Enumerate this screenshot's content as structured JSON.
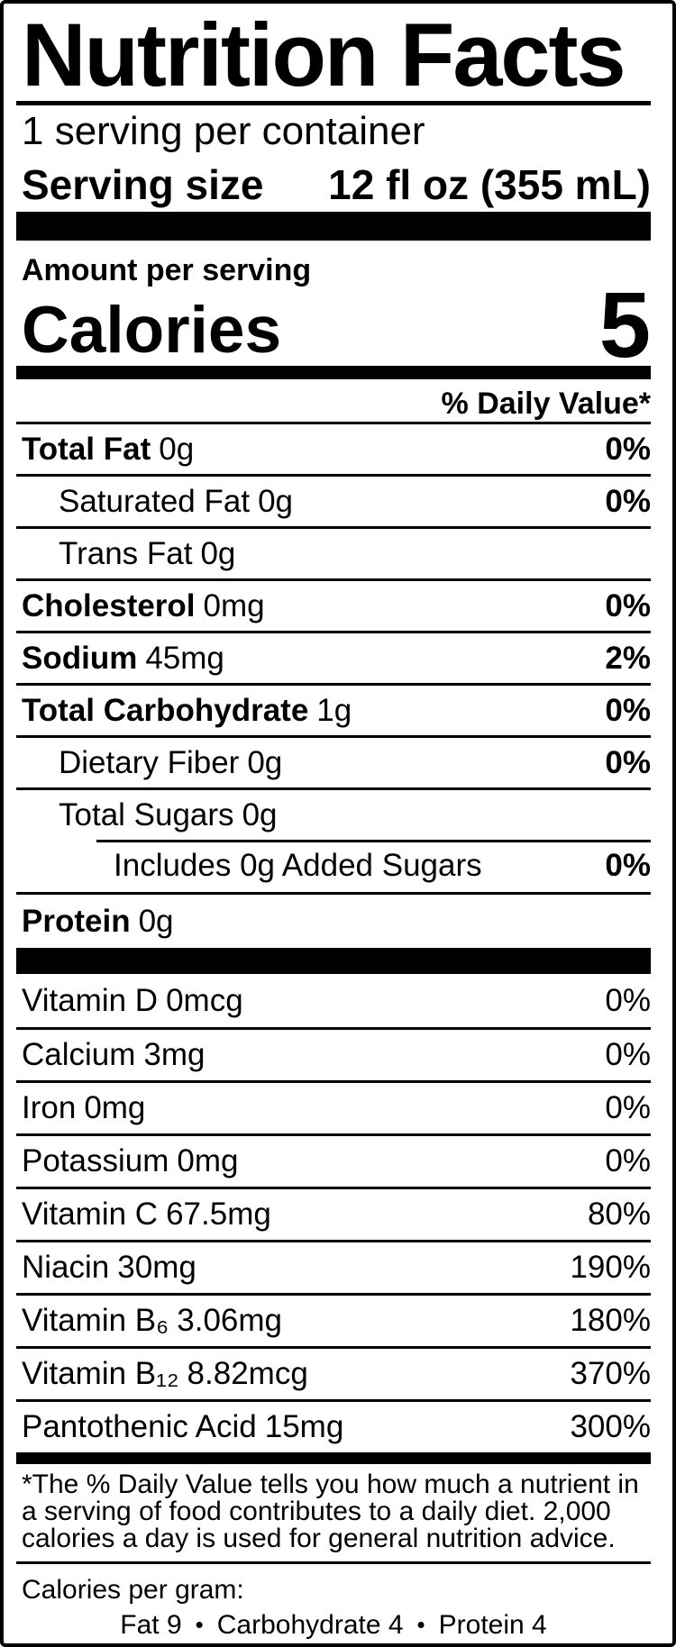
{
  "colors": {
    "ink": "#000000",
    "paper": "#ffffff"
  },
  "header": {
    "title": "Nutrition Facts",
    "servings_per_container": "1 serving per container",
    "serving_size_label": "Serving size",
    "serving_size_value": "12 fl oz (355 mL)"
  },
  "calories_section": {
    "amount_per_serving_label": "Amount per serving",
    "calories_label": "Calories",
    "calories_value": "5"
  },
  "daily_value_header": "% Daily Value*",
  "nutrients": [
    {
      "name": "Total Fat",
      "amount": "0g",
      "dv": "0%"
    },
    {
      "name": "Saturated Fat",
      "amount": "0g",
      "dv": "0%"
    },
    {
      "name": "Trans Fat",
      "amount": "0g",
      "dv": ""
    },
    {
      "name": "Cholesterol",
      "amount": "0mg",
      "dv": "0%"
    },
    {
      "name": "Sodium",
      "amount": "45mg",
      "dv": "2%"
    },
    {
      "name": "Total Carbohydrate",
      "amount": "1g",
      "dv": "0%"
    },
    {
      "name": "Dietary Fiber",
      "amount": "0g",
      "dv": "0%"
    },
    {
      "name": "Total Sugars",
      "amount": "0g",
      "dv": ""
    },
    {
      "name": "Includes 0g Added Sugars",
      "amount": "",
      "dv": "0%"
    },
    {
      "name": "Protein",
      "amount": "0g",
      "dv": ""
    }
  ],
  "vitamins": [
    {
      "name": "Vitamin D",
      "amount": "0mcg",
      "dv": "0%"
    },
    {
      "name": "Calcium",
      "amount": "3mg",
      "dv": "0%"
    },
    {
      "name": "Iron",
      "amount": "0mg",
      "dv": "0%"
    },
    {
      "name": "Potassium",
      "amount": "0mg",
      "dv": "0%"
    },
    {
      "name": "Vitamin C",
      "amount": "67.5mg",
      "dv": "80%"
    },
    {
      "name": "Niacin",
      "amount": "30mg",
      "dv": "190%"
    },
    {
      "name": "Vitamin B₆",
      "amount": "3.06mg",
      "dv": "180%"
    },
    {
      "name": "Vitamin B₁₂",
      "amount": "8.82mcg",
      "dv": "370%"
    },
    {
      "name": "Pantothenic Acid",
      "amount": "15mg",
      "dv": "300%"
    }
  ],
  "footnote": "*The % Daily Value tells you how much a nutrient in a serving of food contributes to a daily diet. 2,000 calories a day is used for general nutrition advice.",
  "calories_per_gram": {
    "label": "Calories per gram:",
    "separator": "•",
    "items": [
      "Fat 9",
      "Carbohydrate 4",
      "Protein 4"
    ]
  }
}
